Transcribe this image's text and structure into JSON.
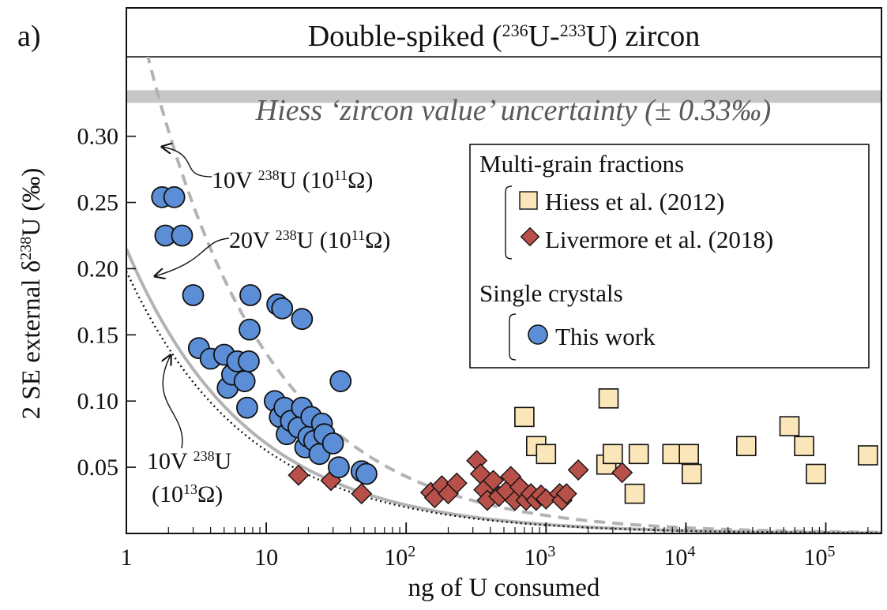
{
  "chart_data": {
    "type": "scatter",
    "panel_label": "a)",
    "title": "Double-spiked (236U-233U) zircon",
    "title_parts": {
      "pre": "Double-spiked (",
      "sup1": "236",
      "mid": "U-",
      "sup2": "233",
      "post": "U) zircon"
    },
    "xlabel": "ng of U consumed",
    "ylabel": "2 SE external δ238U (‰)",
    "ylabel_parts": {
      "pre": "2 SE external δ",
      "sup": "238",
      "post": "U (‰)"
    },
    "x_scale": "log",
    "xlim": [
      1,
      250000
    ],
    "ylim": [
      0.0,
      0.36
    ],
    "x_ticks": [
      {
        "value": 1,
        "base": "1",
        "exp": ""
      },
      {
        "value": 10,
        "base": "10",
        "exp": ""
      },
      {
        "value": 100,
        "base": "10",
        "exp": "2"
      },
      {
        "value": 1000,
        "base": "10",
        "exp": "3"
      },
      {
        "value": 10000,
        "base": "10",
        "exp": "4"
      },
      {
        "value": 100000,
        "base": "10",
        "exp": "5"
      }
    ],
    "y_ticks": [
      {
        "value": 0.05,
        "label": "0.05"
      },
      {
        "value": 0.1,
        "label": "0.10"
      },
      {
        "value": 0.15,
        "label": "0.15"
      },
      {
        "value": 0.2,
        "label": "0.20"
      },
      {
        "value": 0.25,
        "label": "0.25"
      },
      {
        "value": 0.3,
        "label": "0.30"
      }
    ],
    "reference_band": {
      "value": 0.33,
      "label": "Hiess ‘zircon value’ uncertainty (± 0.33‰)",
      "color": "#c6c6c6"
    },
    "curves": [
      {
        "name": "10V 238U (10^11 Ω)",
        "style": "dashed",
        "color": "#b3b3b3",
        "a": 0.43
      },
      {
        "name": "20V 238U (10^11 Ω)",
        "style": "solid",
        "color": "#b3b3b3",
        "a": 0.215
      },
      {
        "name": "10V 238U (10^13 Ω)",
        "style": "dotted",
        "color": "#111111",
        "a": 0.198
      }
    ],
    "annotations": [
      {
        "id": "ann-10v-1e11",
        "parts": [
          "10V ",
          "238",
          "U (10",
          "11",
          "Ω)"
        ]
      },
      {
        "id": "ann-20v-1e11",
        "parts": [
          "20V ",
          "238",
          "U (10",
          "11",
          "Ω)"
        ]
      },
      {
        "id": "ann-10v-1e13",
        "line1": [
          "10V ",
          "238",
          "U"
        ],
        "line2": [
          "(10",
          "13",
          "Ω)"
        ]
      }
    ],
    "legend": {
      "group1": "Multi-grain fractions",
      "group2": "Single crystals",
      "position": "right"
    },
    "series": [
      {
        "name": "Hiess et al. (2012)",
        "marker": "square",
        "color": "#fbe6b9",
        "points": [
          [
            700,
            0.088
          ],
          [
            850,
            0.066
          ],
          [
            1000,
            0.06
          ],
          [
            2800,
            0.102
          ],
          [
            2700,
            0.052
          ],
          [
            3000,
            0.06
          ],
          [
            4300,
            0.03
          ],
          [
            4600,
            0.06
          ],
          [
            8000,
            0.06
          ],
          [
            10500,
            0.06
          ],
          [
            11000,
            0.045
          ],
          [
            27000,
            0.066
          ],
          [
            55000,
            0.081
          ],
          [
            70000,
            0.066
          ],
          [
            85000,
            0.045
          ],
          [
            200000,
            0.059
          ]
        ]
      },
      {
        "name": "Livermore et al. (2018)",
        "marker": "diamond",
        "color": "#b8504a",
        "points": [
          [
            17,
            0.044
          ],
          [
            29,
            0.04
          ],
          [
            48,
            0.03
          ],
          [
            150,
            0.031
          ],
          [
            160,
            0.027
          ],
          [
            180,
            0.036
          ],
          [
            200,
            0.03
          ],
          [
            230,
            0.038
          ],
          [
            320,
            0.055
          ],
          [
            340,
            0.045
          ],
          [
            360,
            0.033
          ],
          [
            380,
            0.025
          ],
          [
            420,
            0.04
          ],
          [
            460,
            0.028
          ],
          [
            520,
            0.032
          ],
          [
            560,
            0.043
          ],
          [
            600,
            0.025
          ],
          [
            650,
            0.035
          ],
          [
            720,
            0.025
          ],
          [
            780,
            0.03
          ],
          [
            850,
            0.025
          ],
          [
            920,
            0.029
          ],
          [
            1000,
            0.026
          ],
          [
            1250,
            0.03
          ],
          [
            1300,
            0.025
          ],
          [
            1400,
            0.03
          ],
          [
            1700,
            0.048
          ],
          [
            3500,
            0.046
          ]
        ]
      },
      {
        "name": "This work",
        "marker": "circle",
        "color": "#5b8ed6",
        "points": [
          [
            1.8,
            0.254
          ],
          [
            2.2,
            0.254
          ],
          [
            1.9,
            0.225
          ],
          [
            2.5,
            0.225
          ],
          [
            3.0,
            0.18
          ],
          [
            3.3,
            0.14
          ],
          [
            4.0,
            0.132
          ],
          [
            5.0,
            0.135
          ],
          [
            5.3,
            0.11
          ],
          [
            5.7,
            0.12
          ],
          [
            6.2,
            0.13
          ],
          [
            7.0,
            0.115
          ],
          [
            7.3,
            0.095
          ],
          [
            7.5,
            0.13
          ],
          [
            7.6,
            0.154
          ],
          [
            7.7,
            0.18
          ],
          [
            12,
            0.173
          ],
          [
            13,
            0.17
          ],
          [
            18,
            0.162
          ],
          [
            34,
            0.115
          ],
          [
            11.5,
            0.1
          ],
          [
            12.5,
            0.088
          ],
          [
            13.5,
            0.095
          ],
          [
            14,
            0.075
          ],
          [
            15,
            0.085
          ],
          [
            17,
            0.08
          ],
          [
            18,
            0.095
          ],
          [
            19,
            0.065
          ],
          [
            20,
            0.073
          ],
          [
            21,
            0.088
          ],
          [
            22,
            0.07
          ],
          [
            24,
            0.06
          ],
          [
            25,
            0.083
          ],
          [
            26,
            0.075
          ],
          [
            30,
            0.068
          ],
          [
            33,
            0.05
          ],
          [
            48,
            0.047
          ],
          [
            52,
            0.045
          ]
        ]
      }
    ]
  }
}
